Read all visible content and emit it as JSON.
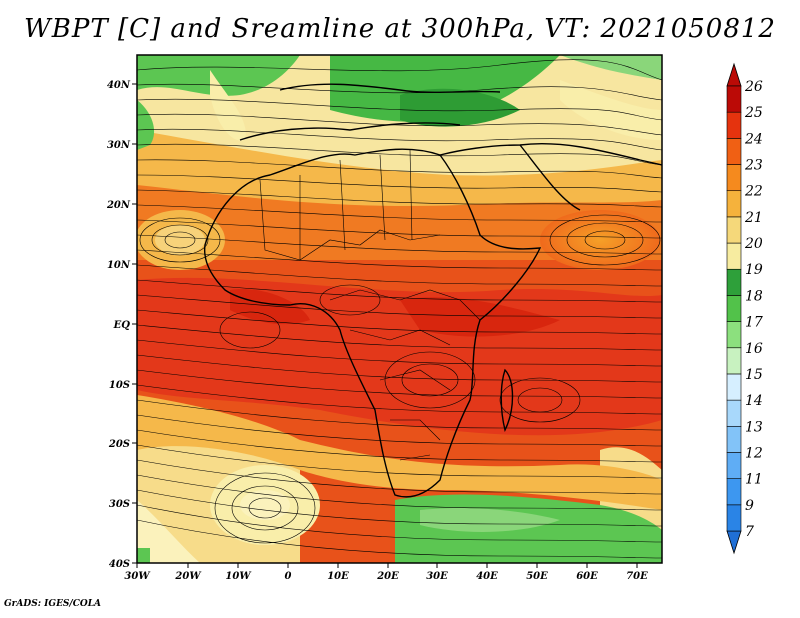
{
  "title": "WBPT [C] and Sreamline at 300hPa, VT: 2021050812",
  "credit": "GrADS: IGES/COLA",
  "lat_ticks": [
    "40N",
    "30N",
    "20N",
    "10N",
    "EQ",
    "10S",
    "20S",
    "30S",
    "40S"
  ],
  "lon_ticks": [
    "30W",
    "20W",
    "10W",
    "0",
    "10E",
    "20E",
    "30E",
    "40E",
    "50E",
    "60E",
    "70E"
  ],
  "colorbar": {
    "labels": [
      "7",
      "9",
      "11",
      "12",
      "13",
      "14",
      "15",
      "16",
      "17",
      "18",
      "19",
      "20",
      "21",
      "22",
      "23",
      "24",
      "25",
      "26"
    ],
    "colors": [
      "#1f6fd6",
      "#2a84e6",
      "#3d97f0",
      "#5fadf5",
      "#82c3f8",
      "#a8d8fb",
      "#d6efff",
      "#c8f2c0",
      "#8ce07e",
      "#52c24a",
      "#2ea03a",
      "#f7eca0",
      "#f5d87a",
      "#f5b23c",
      "#f58a1e",
      "#f06014",
      "#e5330e",
      "#bb0a06"
    ]
  }
}
